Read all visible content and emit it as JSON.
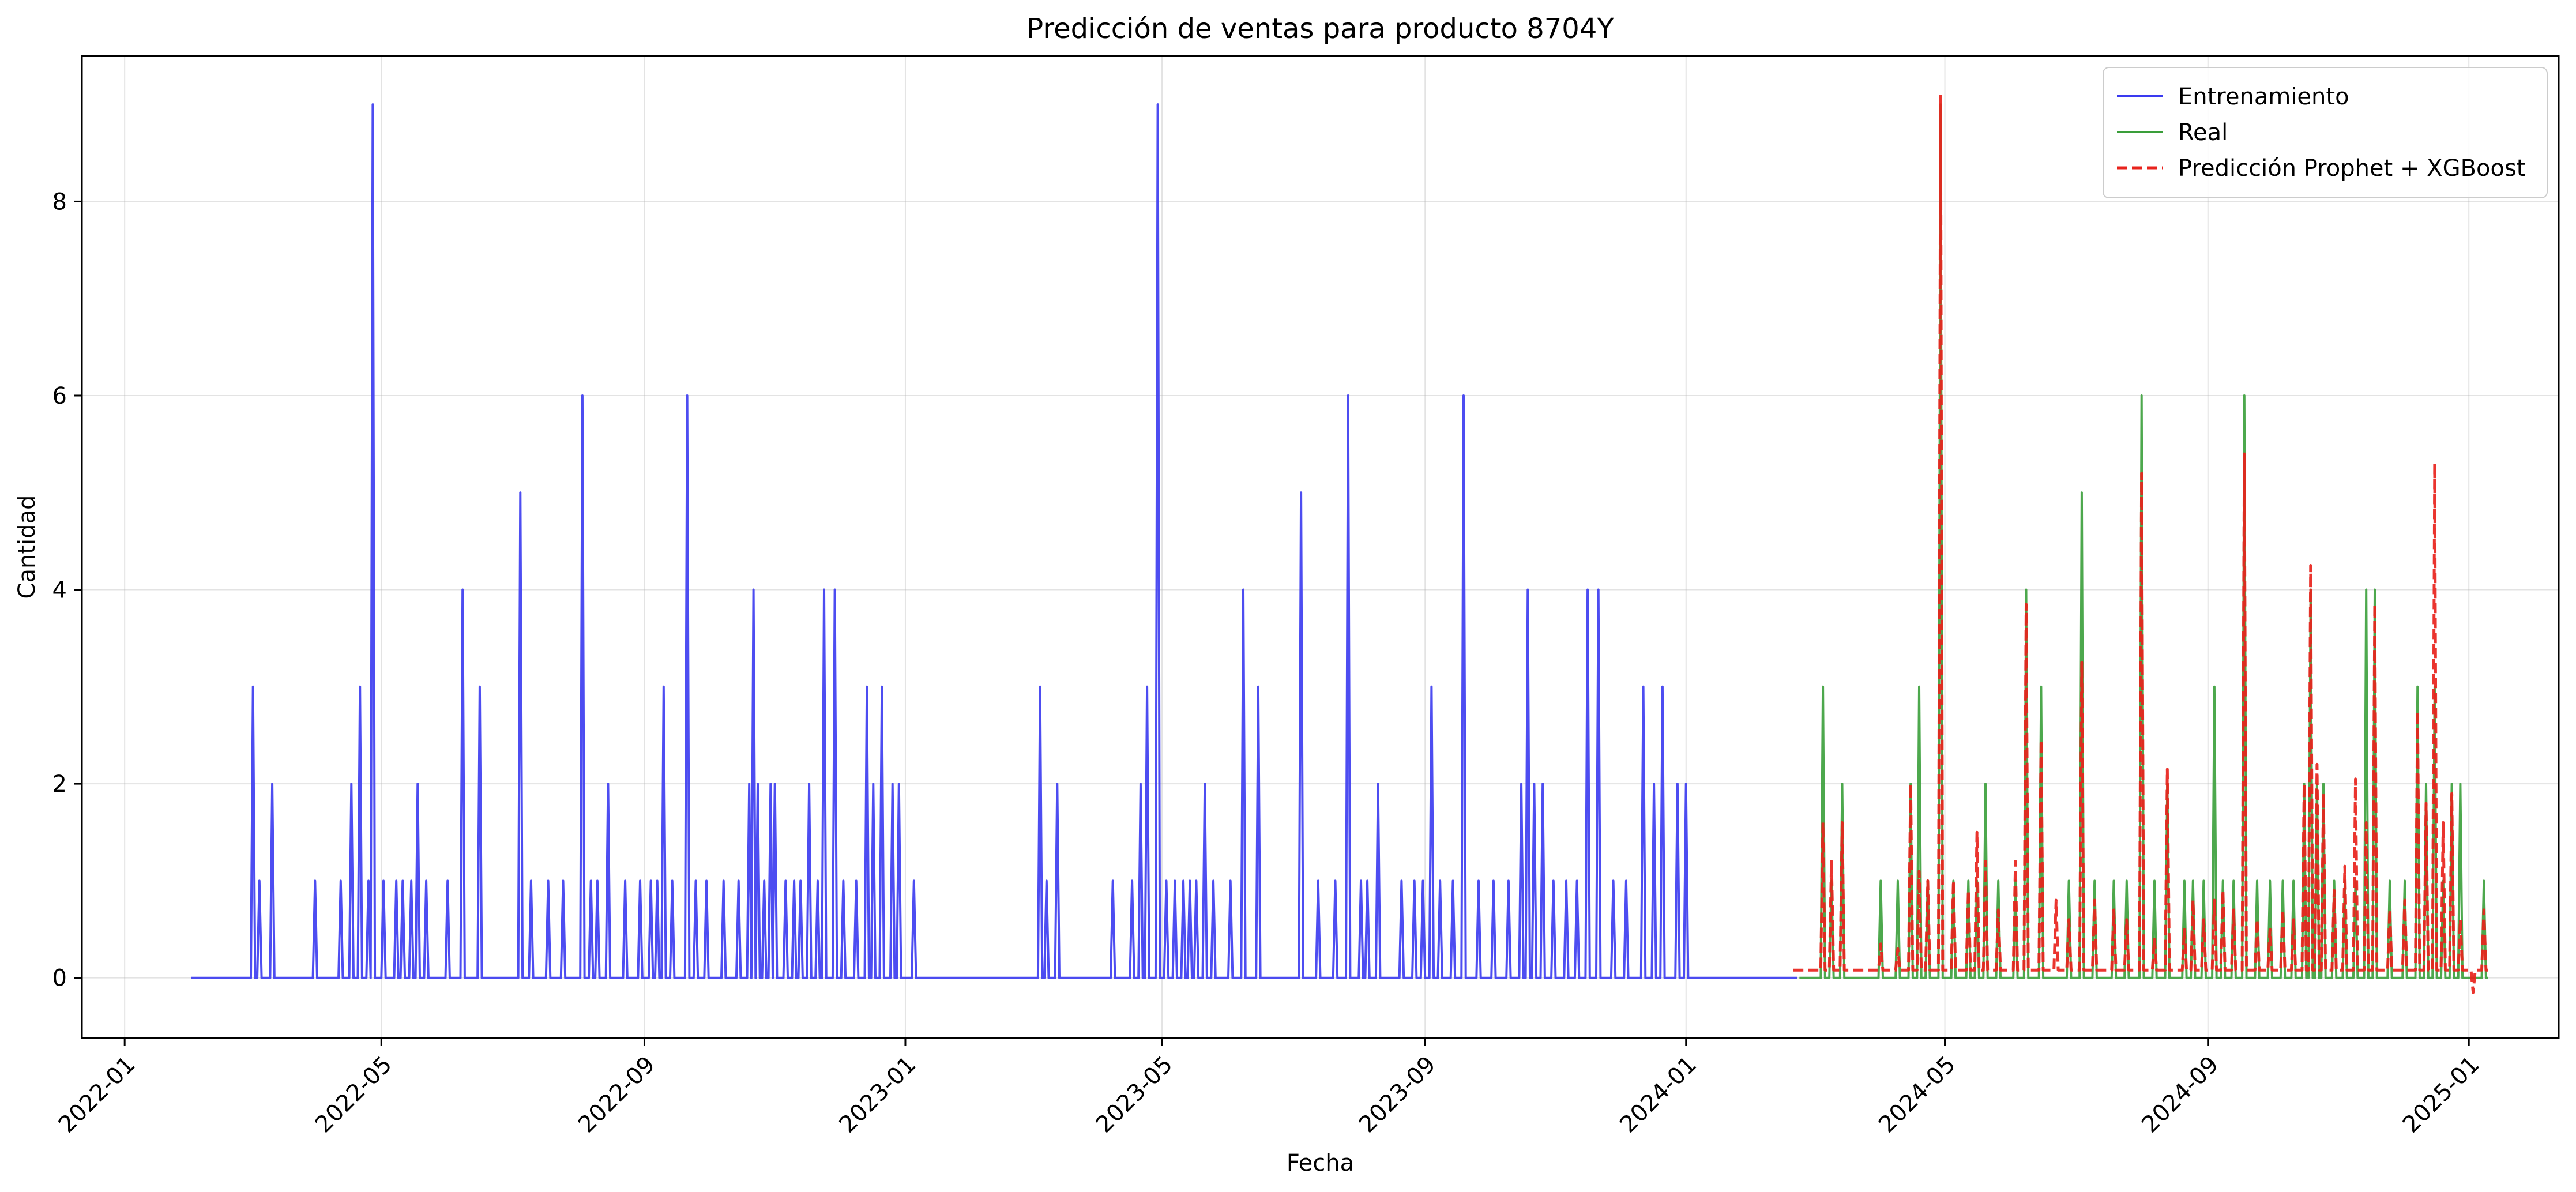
{
  "chart_data": {
    "type": "line",
    "title": "Predicción de ventas para producto 8704Y",
    "xlabel": "Fecha",
    "ylabel": "Cantidad",
    "x_type": "date",
    "xlim": [
      "2021-12-12",
      "2025-02-12"
    ],
    "ylim": [
      -0.62,
      9.5
    ],
    "x_ticks": [
      "2022-01",
      "2022-05",
      "2022-09",
      "2023-01",
      "2023-05",
      "2023-09",
      "2024-01",
      "2024-05",
      "2024-09",
      "2025-01"
    ],
    "y_ticks": [
      0,
      2,
      4,
      6,
      8
    ],
    "grid": true,
    "legend_position": "top-right",
    "series": [
      {
        "name": "Entrenamiento",
        "color": "#3a3af0",
        "style": "solid",
        "start": "2022-02-01",
        "end": "2024-02-22",
        "spikes": [
          [
            "2022-03-02",
            3
          ],
          [
            "2022-03-05",
            1
          ],
          [
            "2022-03-11",
            2
          ],
          [
            "2022-03-31",
            1
          ],
          [
            "2022-04-12",
            1
          ],
          [
            "2022-04-17",
            2
          ],
          [
            "2022-04-21",
            3
          ],
          [
            "2022-04-25",
            1
          ],
          [
            "2022-04-27",
            9
          ],
          [
            "2022-05-02",
            1
          ],
          [
            "2022-05-08",
            1
          ],
          [
            "2022-05-11",
            1
          ],
          [
            "2022-05-15",
            1
          ],
          [
            "2022-05-18",
            2
          ],
          [
            "2022-05-22",
            1
          ],
          [
            "2022-06-01",
            1
          ],
          [
            "2022-06-08",
            4
          ],
          [
            "2022-06-16",
            3
          ],
          [
            "2022-07-05",
            5
          ],
          [
            "2022-07-10",
            1
          ],
          [
            "2022-07-18",
            1
          ],
          [
            "2022-07-25",
            1
          ],
          [
            "2022-08-03",
            6
          ],
          [
            "2022-08-07",
            1
          ],
          [
            "2022-08-10",
            1
          ],
          [
            "2022-08-15",
            2
          ],
          [
            "2022-08-23",
            1
          ],
          [
            "2022-08-30",
            1
          ],
          [
            "2022-09-04",
            1
          ],
          [
            "2022-09-07",
            1
          ],
          [
            "2022-09-10",
            3
          ],
          [
            "2022-09-14",
            1
          ],
          [
            "2022-09-21",
            6
          ],
          [
            "2022-09-25",
            1
          ],
          [
            "2022-09-30",
            1
          ],
          [
            "2022-10-08",
            1
          ],
          [
            "2022-10-15",
            1
          ],
          [
            "2022-10-20",
            2
          ],
          [
            "2022-10-22",
            4
          ],
          [
            "2022-10-24",
            2
          ],
          [
            "2022-10-27",
            1
          ],
          [
            "2022-10-30",
            2
          ],
          [
            "2022-11-01",
            2
          ],
          [
            "2022-11-06",
            1
          ],
          [
            "2022-11-10",
            1
          ],
          [
            "2022-11-13",
            1
          ],
          [
            "2022-11-17",
            2
          ],
          [
            "2022-11-21",
            1
          ],
          [
            "2022-11-24",
            4
          ],
          [
            "2022-11-29",
            4
          ],
          [
            "2022-12-03",
            1
          ],
          [
            "2022-12-09",
            1
          ],
          [
            "2022-12-14",
            3
          ],
          [
            "2022-12-17",
            2
          ],
          [
            "2022-12-21",
            3
          ],
          [
            "2022-12-26",
            2
          ],
          [
            "2022-12-29",
            2
          ],
          [
            "2023-01-05",
            1
          ],
          [
            "2023-03-05",
            3
          ],
          [
            "2023-03-08",
            1
          ],
          [
            "2023-03-13",
            2
          ],
          [
            "2023-04-08",
            1
          ],
          [
            "2023-04-17",
            1
          ],
          [
            "2023-04-21",
            2
          ],
          [
            "2023-04-24",
            3
          ],
          [
            "2023-04-29",
            9
          ],
          [
            "2023-05-03",
            1
          ],
          [
            "2023-05-07",
            1
          ],
          [
            "2023-05-11",
            1
          ],
          [
            "2023-05-14",
            1
          ],
          [
            "2023-05-17",
            1
          ],
          [
            "2023-05-21",
            2
          ],
          [
            "2023-05-25",
            1
          ],
          [
            "2023-06-02",
            1
          ],
          [
            "2023-06-08",
            4
          ],
          [
            "2023-06-15",
            3
          ],
          [
            "2023-07-05",
            5
          ],
          [
            "2023-07-13",
            1
          ],
          [
            "2023-07-21",
            1
          ],
          [
            "2023-07-27",
            6
          ],
          [
            "2023-08-02",
            1
          ],
          [
            "2023-08-05",
            1
          ],
          [
            "2023-08-10",
            2
          ],
          [
            "2023-08-21",
            1
          ],
          [
            "2023-08-27",
            1
          ],
          [
            "2023-08-31",
            1
          ],
          [
            "2023-09-04",
            3
          ],
          [
            "2023-09-08",
            1
          ],
          [
            "2023-09-14",
            1
          ],
          [
            "2023-09-19",
            6
          ],
          [
            "2023-09-26",
            1
          ],
          [
            "2023-10-03",
            1
          ],
          [
            "2023-10-10",
            1
          ],
          [
            "2023-10-16",
            2
          ],
          [
            "2023-10-19",
            4
          ],
          [
            "2023-10-22",
            2
          ],
          [
            "2023-10-26",
            2
          ],
          [
            "2023-10-31",
            1
          ],
          [
            "2023-11-06",
            1
          ],
          [
            "2023-11-11",
            1
          ],
          [
            "2023-11-16",
            4
          ],
          [
            "2023-11-21",
            4
          ],
          [
            "2023-11-28",
            1
          ],
          [
            "2023-12-04",
            1
          ],
          [
            "2023-12-12",
            3
          ],
          [
            "2023-12-17",
            2
          ],
          [
            "2023-12-21",
            3
          ],
          [
            "2023-12-28",
            2
          ],
          [
            "2024-01-01",
            2
          ]
        ]
      },
      {
        "name": "Real",
        "color": "#3a9e3a",
        "style": "solid",
        "start": "2024-02-23",
        "end": "2025-01-10",
        "spikes": [
          [
            "2024-03-05",
            3
          ],
          [
            "2024-03-09",
            1
          ],
          [
            "2024-03-14",
            2
          ],
          [
            "2024-04-01",
            1
          ],
          [
            "2024-04-09",
            1
          ],
          [
            "2024-04-15",
            2
          ],
          [
            "2024-04-19",
            3
          ],
          [
            "2024-04-23",
            1
          ],
          [
            "2024-04-29",
            9
          ],
          [
            "2024-05-05",
            1
          ],
          [
            "2024-05-12",
            1
          ],
          [
            "2024-05-16",
            1
          ],
          [
            "2024-05-20",
            2
          ],
          [
            "2024-05-26",
            1
          ],
          [
            "2024-06-03",
            1
          ],
          [
            "2024-06-08",
            4
          ],
          [
            "2024-06-15",
            3
          ],
          [
            "2024-06-28",
            1
          ],
          [
            "2024-07-04",
            5
          ],
          [
            "2024-07-10",
            1
          ],
          [
            "2024-07-19",
            1
          ],
          [
            "2024-07-25",
            1
          ],
          [
            "2024-08-01",
            6
          ],
          [
            "2024-08-07",
            1
          ],
          [
            "2024-08-13",
            2
          ],
          [
            "2024-08-21",
            1
          ],
          [
            "2024-08-25",
            1
          ],
          [
            "2024-08-30",
            1
          ],
          [
            "2024-09-04",
            3
          ],
          [
            "2024-09-08",
            1
          ],
          [
            "2024-09-13",
            1
          ],
          [
            "2024-09-18",
            6
          ],
          [
            "2024-09-24",
            1
          ],
          [
            "2024-09-30",
            1
          ],
          [
            "2024-10-06",
            1
          ],
          [
            "2024-10-11",
            1
          ],
          [
            "2024-10-16",
            2
          ],
          [
            "2024-10-19",
            4
          ],
          [
            "2024-10-22",
            2
          ],
          [
            "2024-10-25",
            2
          ],
          [
            "2024-10-30",
            1
          ],
          [
            "2024-11-04",
            1
          ],
          [
            "2024-11-09",
            1
          ],
          [
            "2024-11-14",
            4
          ],
          [
            "2024-11-18",
            4
          ],
          [
            "2024-11-25",
            1
          ],
          [
            "2024-12-02",
            1
          ],
          [
            "2024-12-08",
            3
          ],
          [
            "2024-12-12",
            2
          ],
          [
            "2024-12-16",
            3
          ],
          [
            "2024-12-20",
            1
          ],
          [
            "2024-12-24",
            2
          ],
          [
            "2024-12-28",
            2
          ],
          [
            "2025-01-08",
            1
          ]
        ]
      },
      {
        "name": "Predicción Prophet + XGBoost",
        "color": "#e8231c",
        "style": "dashed",
        "start": "2024-02-20",
        "end": "2025-01-10",
        "baseline": 0.08,
        "spikes": [
          [
            "2024-03-05",
            1.6
          ],
          [
            "2024-03-09",
            1.2
          ],
          [
            "2024-03-14",
            1.6
          ],
          [
            "2024-04-01",
            0.35
          ],
          [
            "2024-04-09",
            0.3
          ],
          [
            "2024-04-15",
            2.0
          ],
          [
            "2024-04-19",
            1.1
          ],
          [
            "2024-04-23",
            1.0
          ],
          [
            "2024-04-29",
            9.1
          ],
          [
            "2024-05-05",
            1.0
          ],
          [
            "2024-05-12",
            0.9
          ],
          [
            "2024-05-16",
            1.5
          ],
          [
            "2024-05-20",
            1.2
          ],
          [
            "2024-05-26",
            0.7
          ],
          [
            "2024-06-03",
            1.2
          ],
          [
            "2024-06-08",
            3.85
          ],
          [
            "2024-06-15",
            2.45
          ],
          [
            "2024-06-22",
            0.8
          ],
          [
            "2024-06-28",
            0.6
          ],
          [
            "2024-07-04",
            3.25
          ],
          [
            "2024-07-10",
            0.8
          ],
          [
            "2024-07-19",
            0.7
          ],
          [
            "2024-07-25",
            0.6
          ],
          [
            "2024-08-01",
            5.2
          ],
          [
            "2024-08-07",
            0.4
          ],
          [
            "2024-08-13",
            2.15
          ],
          [
            "2024-08-21",
            0.5
          ],
          [
            "2024-08-25",
            0.8
          ],
          [
            "2024-08-30",
            0.6
          ],
          [
            "2024-09-04",
            0.8
          ],
          [
            "2024-09-08",
            0.9
          ],
          [
            "2024-09-13",
            0.7
          ],
          [
            "2024-09-18",
            5.4
          ],
          [
            "2024-09-24",
            0.6
          ],
          [
            "2024-09-30",
            0.5
          ],
          [
            "2024-10-06",
            0.7
          ],
          [
            "2024-10-11",
            0.6
          ],
          [
            "2024-10-16",
            2.0
          ],
          [
            "2024-10-19",
            4.25
          ],
          [
            "2024-10-22",
            2.2
          ],
          [
            "2024-10-25",
            1.9
          ],
          [
            "2024-10-30",
            0.9
          ],
          [
            "2024-11-04",
            1.15
          ],
          [
            "2024-11-09",
            2.05
          ],
          [
            "2024-11-14",
            1.6
          ],
          [
            "2024-11-18",
            3.85
          ],
          [
            "2024-11-25",
            0.7
          ],
          [
            "2024-12-02",
            0.8
          ],
          [
            "2024-12-08",
            2.75
          ],
          [
            "2024-12-12",
            1.8
          ],
          [
            "2024-12-16",
            5.3
          ],
          [
            "2024-12-20",
            1.6
          ],
          [
            "2024-12-24",
            1.9
          ],
          [
            "2024-12-28",
            0.6
          ],
          [
            "2025-01-03",
            -0.15
          ],
          [
            "2025-01-08",
            0.7
          ]
        ]
      }
    ]
  }
}
